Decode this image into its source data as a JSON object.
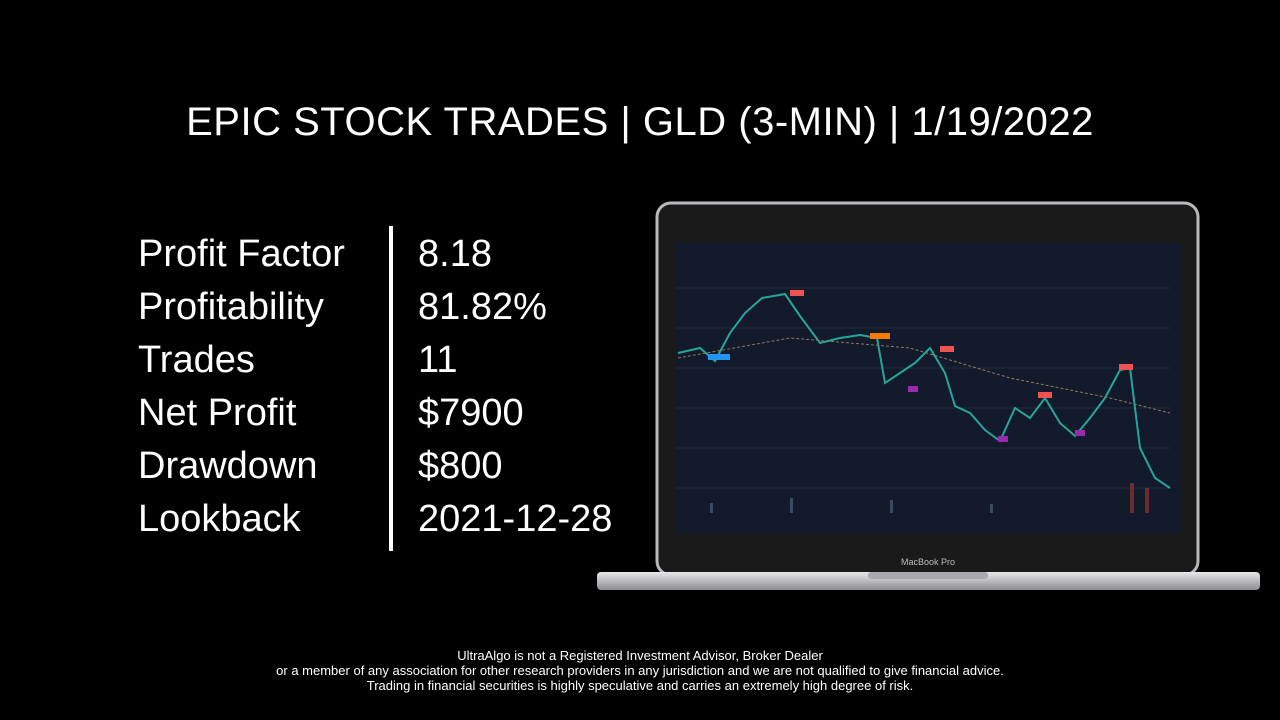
{
  "header": {
    "title": "EPIC STOCK TRADES | GLD (3-MIN) | 1/19/2022"
  },
  "stats": [
    {
      "label": "Profit Factor",
      "value": "8.18"
    },
    {
      "label": "Profitability",
      "value": "81.82%"
    },
    {
      "label": "Trades",
      "value": "11"
    },
    {
      "label": "Net Profit",
      "value": "$7900"
    },
    {
      "label": "Drawdown",
      "value": "$800"
    },
    {
      "label": "Lookback",
      "value": "2021-12-28"
    }
  ],
  "laptop": {
    "label": "MacBook Pro"
  },
  "disclaimer": [
    "UltraAlgo is not a Registered Investment Advisor, Broker Dealer",
    "or a member of any association for other research providers in any jurisdiction and we are not qualified to give financial advice.",
    "Trading in financial securities is highly speculative and carries an extremely high degree of risk."
  ]
}
